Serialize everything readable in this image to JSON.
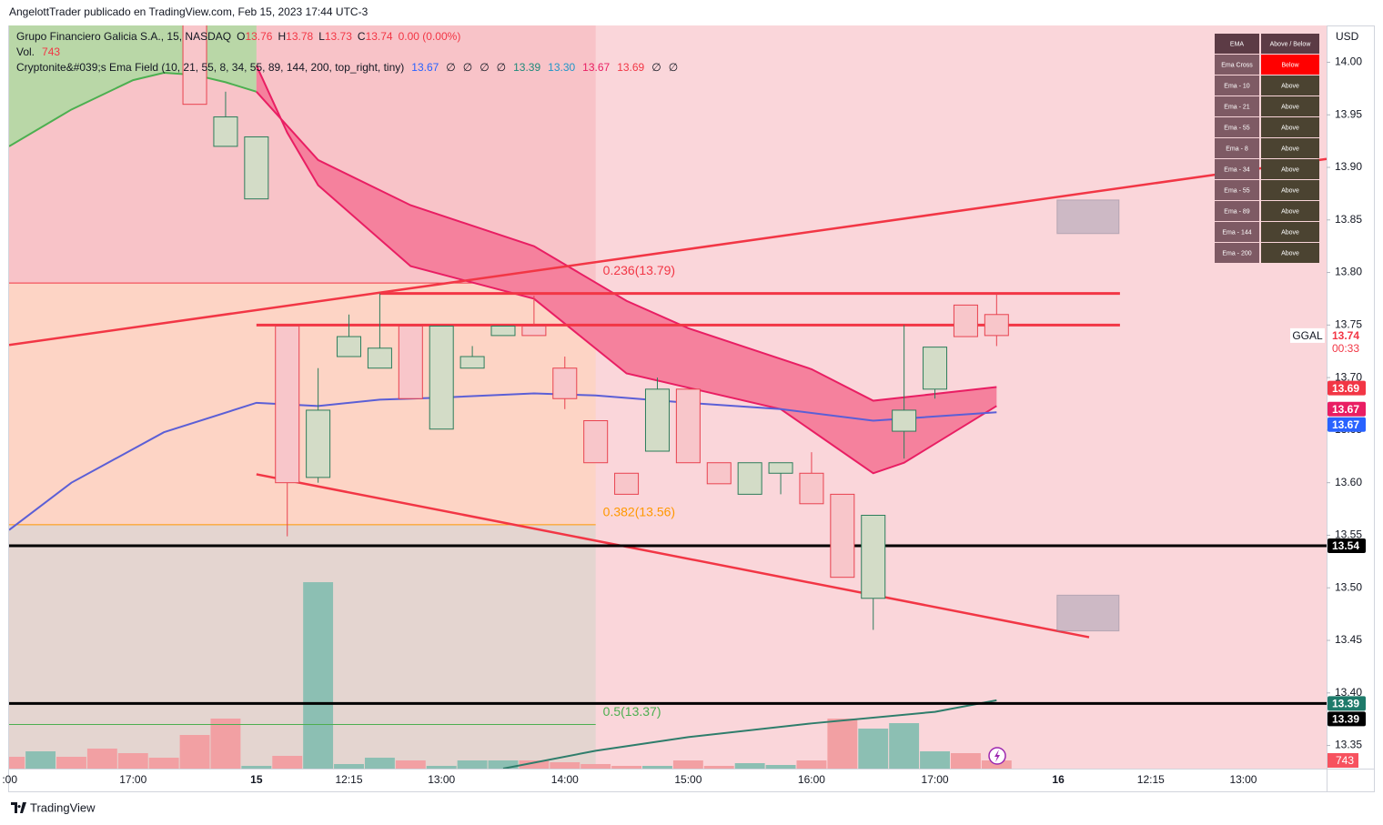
{
  "header": "AngelottTrader publicado en TradingView.com, Feb 15, 2023 17:44 UTC-3",
  "footer": "TradingView",
  "chart_data": {
    "type": "candlestick",
    "symbol": "Grupo Financiero Galicia S.A., 15, NASDAQ",
    "legend_ohlc": [
      "O",
      "13.76",
      "H",
      "13.78",
      "L",
      "13.73",
      "C",
      "13.74",
      "0.00 (0.00%)"
    ],
    "volume_title": "Vol.",
    "volume_last": 743,
    "indicator": "Cryptonite&#039;s Ema Field (10, 21, 55, 8, 34, 55, 89, 144, 200, top_right, tiny)",
    "indicator_values": [
      "13.67",
      "∅",
      "∅",
      "∅",
      "∅",
      "13.39",
      "13.30",
      "13.67",
      "13.69",
      "∅",
      "∅"
    ],
    "indicator_colors": [
      "#2962ff",
      "#131722",
      "#131722",
      "#131722",
      "#131722",
      "#1e8a7a",
      "#2196c8",
      "#e91e63",
      "#f23645",
      "#131722",
      "#131722"
    ],
    "currency": "USD",
    "xlim": [
      -6.02,
      36.7
    ],
    "ylim": [
      13.328,
      14.035
    ],
    "vlim": [
      0,
      67500
    ],
    "xticks": [
      {
        "value": -6,
        "label": ":00"
      },
      {
        "value": -2,
        "label": "17:00"
      },
      {
        "value": 2,
        "label": "15"
      },
      {
        "value": 5,
        "label": "12:15"
      },
      {
        "value": 8,
        "label": "13:00"
      },
      {
        "value": 12,
        "label": "14:00"
      },
      {
        "value": 16,
        "label": "15:00"
      },
      {
        "value": 20,
        "label": "16:00"
      },
      {
        "value": 24,
        "label": "17:00"
      },
      {
        "value": 28,
        "label": "16"
      },
      {
        "value": 31,
        "label": "12:15"
      },
      {
        "value": 34,
        "label": "13:00"
      }
    ],
    "yticks": [
      {
        "value": 14,
        "label": "14.00"
      },
      13.95,
      {
        "value": 13.9,
        "label": "13.90"
      },
      13.85,
      {
        "value": 13.8,
        "label": "13.80"
      },
      13.75,
      {
        "value": 13.7,
        "label": "13.70"
      },
      13.65,
      {
        "value": 13.6,
        "label": "13.60"
      },
      13.55,
      {
        "value": 13.5,
        "label": "13.50"
      },
      13.45,
      {
        "value": 13.4,
        "label": "13.40"
      },
      13.35
    ],
    "x": [
      0,
      1,
      2,
      3,
      4,
      5,
      6,
      7,
      8,
      9,
      10,
      11,
      12,
      13,
      14,
      15,
      16,
      17,
      18,
      19,
      20,
      21,
      22,
      23,
      24,
      25,
      26
    ],
    "open": [
      14.04,
      13.92,
      13.87,
      13.749,
      13.605,
      13.72,
      13.709,
      13.749,
      13.651,
      13.709,
      13.74,
      13.749,
      13.709,
      13.659,
      13.609,
      13.63,
      13.689,
      13.619,
      13.589,
      13.609,
      13.609,
      13.589,
      13.49,
      13.649,
      13.689,
      13.769,
      13.76
    ],
    "high": [
      14.05,
      13.972,
      13.929,
      13.749,
      13.709,
      13.76,
      13.78,
      13.749,
      13.749,
      13.73,
      13.749,
      13.778,
      13.72,
      13.659,
      13.609,
      13.7,
      13.689,
      13.619,
      13.619,
      13.619,
      13.629,
      13.589,
      13.569,
      13.75,
      13.729,
      13.769,
      13.78
    ],
    "low": [
      13.96,
      13.92,
      13.87,
      13.549,
      13.6,
      13.72,
      13.709,
      13.68,
      13.651,
      13.709,
      13.74,
      13.74,
      13.67,
      13.619,
      13.589,
      13.63,
      13.619,
      13.599,
      13.589,
      13.589,
      13.58,
      13.51,
      13.46,
      13.623,
      13.68,
      13.739,
      13.73
    ],
    "close": [
      13.96,
      13.948,
      13.929,
      13.6,
      13.669,
      13.739,
      13.728,
      13.68,
      13.749,
      13.72,
      13.749,
      13.74,
      13.68,
      13.619,
      13.589,
      13.689,
      13.619,
      13.599,
      13.619,
      13.619,
      13.58,
      13.51,
      13.569,
      13.669,
      13.729,
      13.739,
      13.74
    ],
    "up_color": "#d3dcc7",
    "up_border": "#2e7d5b",
    "down_color": "#f8c6ca",
    "down_border": "#e8424f",
    "volume": {
      "x": [
        -6,
        -5,
        -4,
        -3,
        -2,
        -1,
        0,
        1,
        2,
        3,
        4,
        5,
        6,
        7,
        8,
        9,
        10,
        11,
        12,
        13,
        14,
        15,
        16,
        17,
        18,
        19,
        20,
        21,
        22,
        23,
        24,
        25,
        26
      ],
      "values": [
        1074,
        1569,
        1074,
        1817,
        1404,
        991,
        3056,
        4543,
        248,
        1156,
        16933,
        413,
        991,
        743,
        248,
        743,
        743,
        743,
        578,
        413,
        248,
        248,
        743,
        248,
        496,
        330,
        743,
        4543,
        3634,
        4130,
        1569,
        1404,
        743
      ],
      "colors": [
        "#f2a0a3",
        "#8cbfb3",
        "#f2a0a3",
        "#f2a0a3",
        "#f2a0a3",
        "#f2a0a3",
        "#f2a0a3",
        "#f2a0a3",
        "#8cbfb3",
        "#f2a0a3",
        "#8cbfb3",
        "#8cbfb3",
        "#8cbfb3",
        "#f2a0a3",
        "#8cbfb3",
        "#8cbfb3",
        "#8cbfb3",
        "#f2a0a3",
        "#f2a0a3",
        "#f2a0a3",
        "#f2a0a3",
        "#8cbfb3",
        "#f2a0a3",
        "#f2a0a3",
        "#8cbfb3",
        "#8cbfb3",
        "#f2a0a3",
        "#f2a0a3",
        "#8cbfb3",
        "#8cbfb3",
        "#8cbfb3",
        "#f2a0a3",
        "#f2a0a3"
      ]
    },
    "background": "#fad6da",
    "fib_end": 13,
    "fib": [
      {
        "label": "0.236(13.79)",
        "value": 13.79,
        "color": "#f23645",
        "zone": "#f8c3c8"
      },
      {
        "label": "0.382(13.56)",
        "value": 13.56,
        "color": "#ff9800",
        "zone": "#fdd4c5"
      },
      {
        "label": "0.5(13.37)",
        "value": 13.37,
        "color": "#4caf50",
        "zone": "#e4d5d0"
      }
    ],
    "ema_area": {
      "x": [
        -6.02,
        -4,
        -2,
        -1,
        0,
        1,
        2
      ],
      "values": [
        13.92,
        13.955,
        13.983,
        13.99,
        13.988,
        13.981,
        13.972
      ],
      "color": "#4caf50",
      "fill": "#b9d7a7"
    },
    "ribbon": {
      "fill": "#f5819d",
      "color": "#e91e63",
      "a": {
        "x": [
          2,
          3,
          4,
          7,
          11,
          14,
          19,
          22,
          23,
          26
        ],
        "values": [
          13.997,
          13.933,
          13.883,
          13.806,
          13.775,
          13.704,
          13.67,
          13.609,
          13.619,
          13.673
        ]
      },
      "b": {
        "x": [
          2,
          4,
          7,
          11,
          14,
          16,
          20,
          22,
          26
        ],
        "values": [
          13.972,
          13.907,
          13.864,
          13.825,
          13.773,
          13.747,
          13.708,
          13.678,
          13.691
        ]
      }
    },
    "lines": [
      {
        "x": [
          -6.02,
          -4,
          -1,
          2,
          4,
          6,
          8,
          11,
          13,
          16,
          19,
          22,
          26
        ],
        "values": [
          13.555,
          13.6,
          13.648,
          13.676,
          13.673,
          13.679,
          13.681,
          13.685,
          13.683,
          13.676,
          13.67,
          13.659,
          13.667
        ],
        "color": "#5b5fd6"
      },
      {
        "x": [
          10,
          13,
          16,
          20,
          24,
          26
        ],
        "values": [
          13.328,
          13.345,
          13.358,
          13.371,
          13.382,
          13.393
        ],
        "color": "#2e7d6b"
      }
    ],
    "trendlines": [
      {
        "x": [
          -6.02,
          36.7
        ],
        "values": [
          13.731,
          13.908
        ],
        "color": "#f23645"
      },
      {
        "x": [
          2,
          29
        ],
        "values": [
          13.608,
          13.453
        ],
        "color": "#f23645"
      }
    ],
    "hlines": [
      {
        "value": 13.78,
        "x": [
          6,
          30
        ],
        "color": "#f23645",
        "width": 3
      },
      {
        "value": 13.75,
        "x": [
          2,
          30
        ],
        "color": "#f23645",
        "width": 3
      },
      {
        "value": 13.54,
        "x": [
          -6.02,
          36.7
        ],
        "color": "#000000",
        "width": 3
      },
      {
        "value": 13.39,
        "x": [
          -6.02,
          36.7
        ],
        "color": "#000000",
        "width": 3
      }
    ],
    "boxes": [
      {
        "x": [
          27.96,
          29.97
        ],
        "values": [
          13.869,
          13.837
        ]
      },
      {
        "x": [
          27.96,
          29.97
        ],
        "values": [
          13.493,
          13.459
        ]
      }
    ],
    "symbol_tag": "GGAL",
    "countdown": "00:33",
    "price_badges": [
      {
        "value": 13.74,
        "color": "#ffffff",
        "text": "#f23645"
      },
      {
        "value": 13.69,
        "color": "#f23645",
        "text": "#ffffff"
      },
      {
        "value": 13.67,
        "color": "#e91e63",
        "text": "#ffffff"
      },
      {
        "value": 13.67,
        "color": "#2962ff",
        "text": "#ffffff"
      },
      {
        "value": 13.54,
        "color": "#000000",
        "text": "#ffffff"
      },
      {
        "value": 13.39,
        "color": "#1e7a6a",
        "text": "#ffffff"
      },
      {
        "value": 13.39,
        "color": "#000000",
        "text": "#ffffff"
      }
    ],
    "ema_table": {
      "header": [
        "EMA",
        "Above / Below"
      ],
      "rows": [
        [
          "Ema Cross",
          "Below"
        ],
        [
          "Ema - 10",
          "Above"
        ],
        [
          "Ema - 21",
          "Above"
        ],
        [
          "Ema - 55",
          "Above"
        ],
        [
          "Ema - 8",
          "Above"
        ],
        [
          "Ema - 34",
          "Above"
        ],
        [
          "Ema - 55",
          "Above"
        ],
        [
          "Ema - 89",
          "Above"
        ],
        [
          "Ema - 144",
          "Above"
        ],
        [
          "Ema - 200",
          "Above"
        ]
      ],
      "header_color": "#5c3b45",
      "label_color": "#7e5a64",
      "value_color": "#4b4331",
      "alert_color": "#ff0000"
    }
  }
}
